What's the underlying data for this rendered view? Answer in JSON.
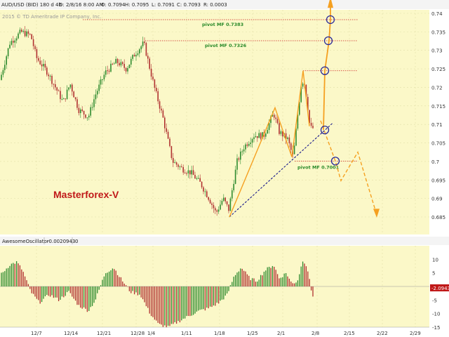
{
  "header": {
    "symbol": "AUD/USD (BID) 180 d 4h",
    "date": "D: 2/8/16 8:00 AM",
    "open": "O: 0.7094",
    "high": "H: 0.7095",
    "low": "L: 0.7091",
    "close": "C: 0.7093",
    "range": "R: 0.0003"
  },
  "copyright": "2015 © TD Ameritrade IP Company, Inc.",
  "brand": "Masterforex-V",
  "price_axis": [
    "0.74",
    "0.735",
    "0.73",
    "0.725",
    "0.72",
    "0.715",
    "0.71",
    "0.705",
    "0.7",
    "0.695",
    "0.69",
    "0.685"
  ],
  "date_axis": [
    "12/7",
    "12/14",
    "12/21",
    "12/28",
    "1/4",
    "1/11",
    "1/18",
    "1/25",
    "2/1",
    "2/8",
    "2/15",
    "2/22",
    "2/29"
  ],
  "pivots": [
    {
      "label": "pivot MF 0.7383",
      "price": 0.7383
    },
    {
      "label": "pivot MF 0.7326",
      "price": 0.7326
    },
    {
      "label": "pivot MF 0.7001",
      "price": 0.7001
    }
  ],
  "oscillator": {
    "title": "AwesomeOscillator",
    "value": "-0.0020943",
    "param": "0",
    "axis": [
      "10",
      "5",
      "0",
      "-5",
      "-10",
      "-15"
    ],
    "value_badge": "-2.0943"
  },
  "colors": {
    "bull": "#2e8b2e",
    "bear": "#b03030",
    "projection": "#f5a020",
    "trendline": "#1a1a8c",
    "pivot": "#cc2222",
    "panel": "#fbf8c8"
  }
}
